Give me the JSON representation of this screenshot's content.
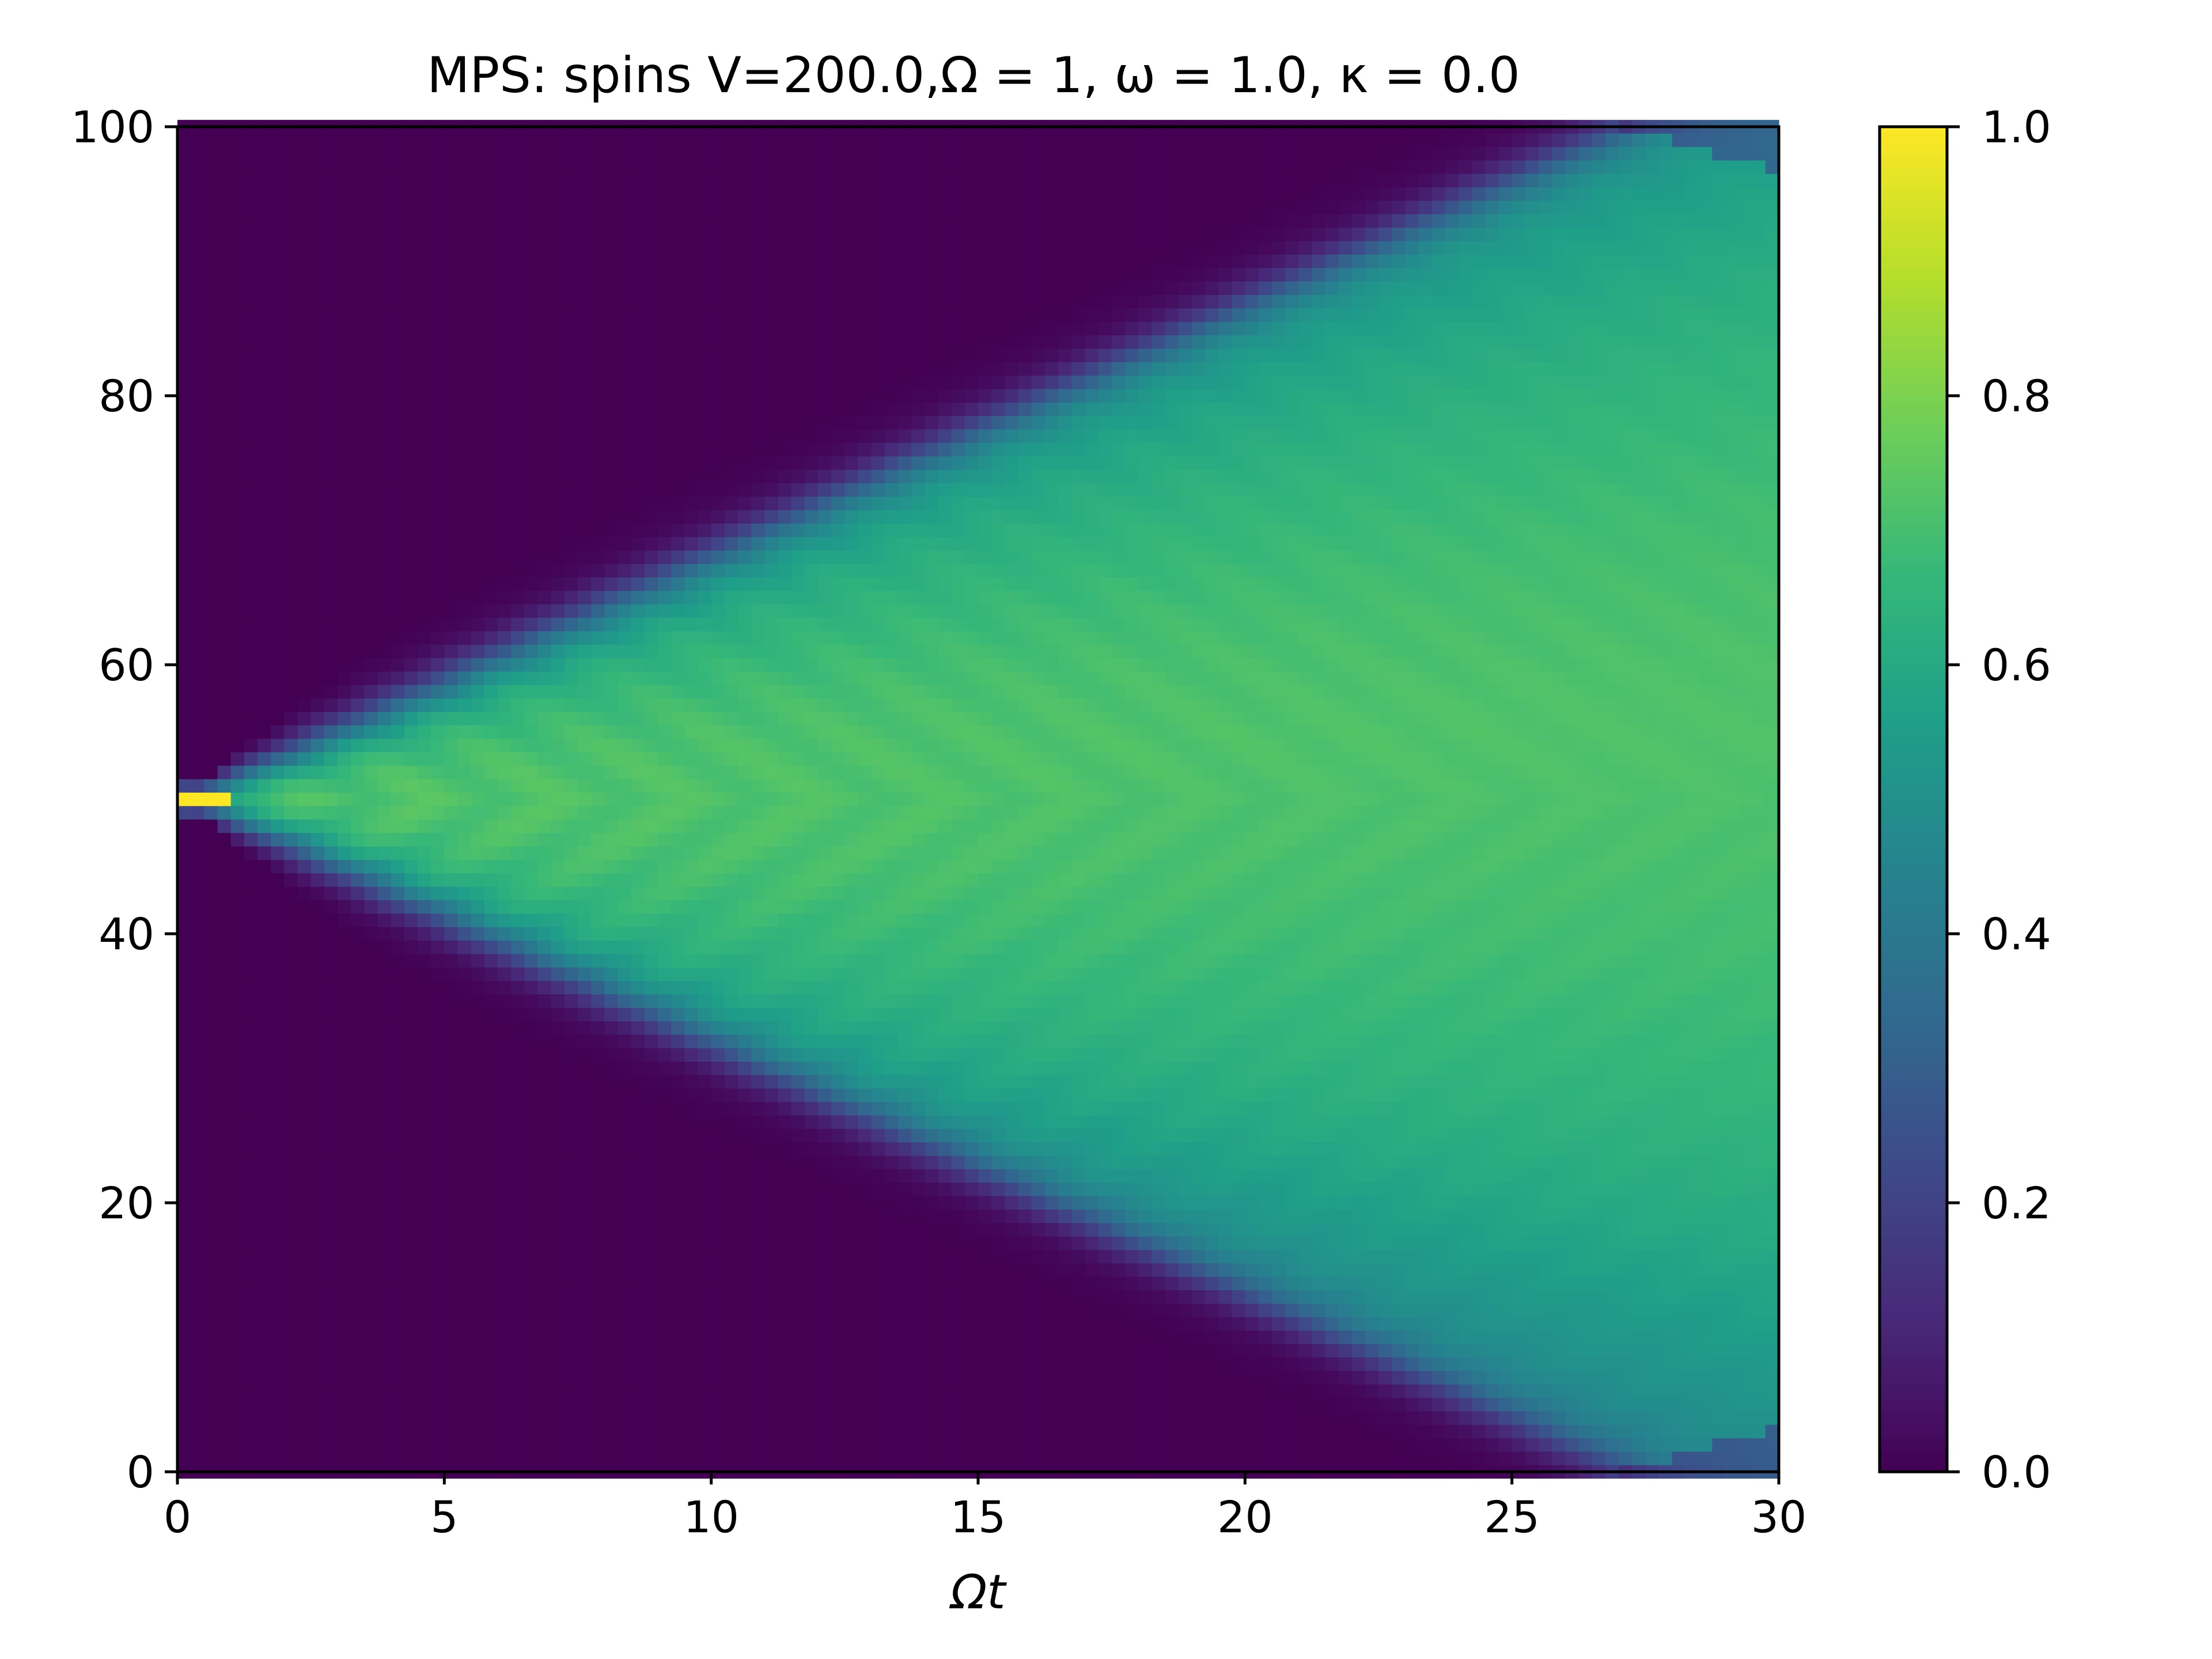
{
  "chart_data": {
    "type": "heatmap",
    "title": "MPS: spins V=200.0,Ω = 1, ω = 1.0, κ = 0.0",
    "xlabel": "Ωt",
    "ylabel": "",
    "xlim": [
      0,
      30
    ],
    "ylim": [
      0,
      100
    ],
    "x_ticks": [
      "0",
      "5",
      "10",
      "15",
      "20",
      "25",
      "30"
    ],
    "y_ticks": [
      "0",
      "20",
      "40",
      "60",
      "80",
      "100"
    ],
    "colorbar": {
      "colormap": "viridis",
      "range": [
        0.0,
        1.0
      ],
      "ticks": [
        "0.0",
        "0.2",
        "0.4",
        "0.6",
        "0.8",
        "1.0"
      ]
    },
    "grid": false,
    "structure": {
      "source_site": 50,
      "initial_value": 1.0,
      "background_value": 0.0,
      "light_cone_front_speed_sites_per_Omega_t": 1.85,
      "interior_value_center": 0.72,
      "interior_value_near_front": 0.5
    },
    "colors": {
      "viridis": [
        "#440154",
        "#482878",
        "#3e4989",
        "#31688e",
        "#26828e",
        "#1f9e89",
        "#35b779",
        "#6ece58",
        "#b5de2b",
        "#fde725"
      ]
    }
  }
}
